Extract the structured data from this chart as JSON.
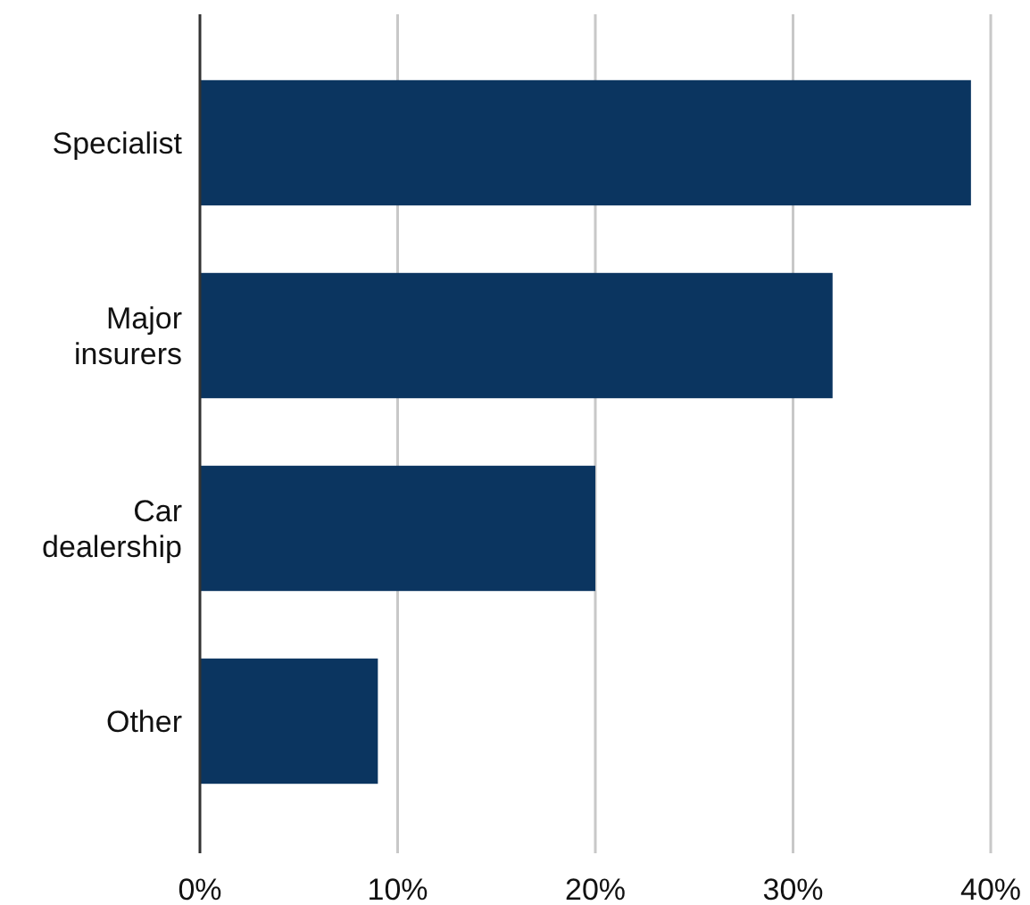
{
  "chart_data": {
    "type": "bar",
    "orientation": "horizontal",
    "categories": [
      "Specialist",
      "Major insurers",
      "Car dealership",
      "Other"
    ],
    "values": [
      39,
      32,
      20,
      9
    ],
    "color": "#0b3560",
    "xlim": [
      0,
      40
    ],
    "xticks": [
      {
        "value": 0,
        "label": "0%"
      },
      {
        "value": 10,
        "label": "10%"
      },
      {
        "value": 20,
        "label": "20%"
      },
      {
        "value": 30,
        "label": "30%"
      },
      {
        "value": 40,
        "label": "40%"
      }
    ],
    "grid": "x"
  }
}
